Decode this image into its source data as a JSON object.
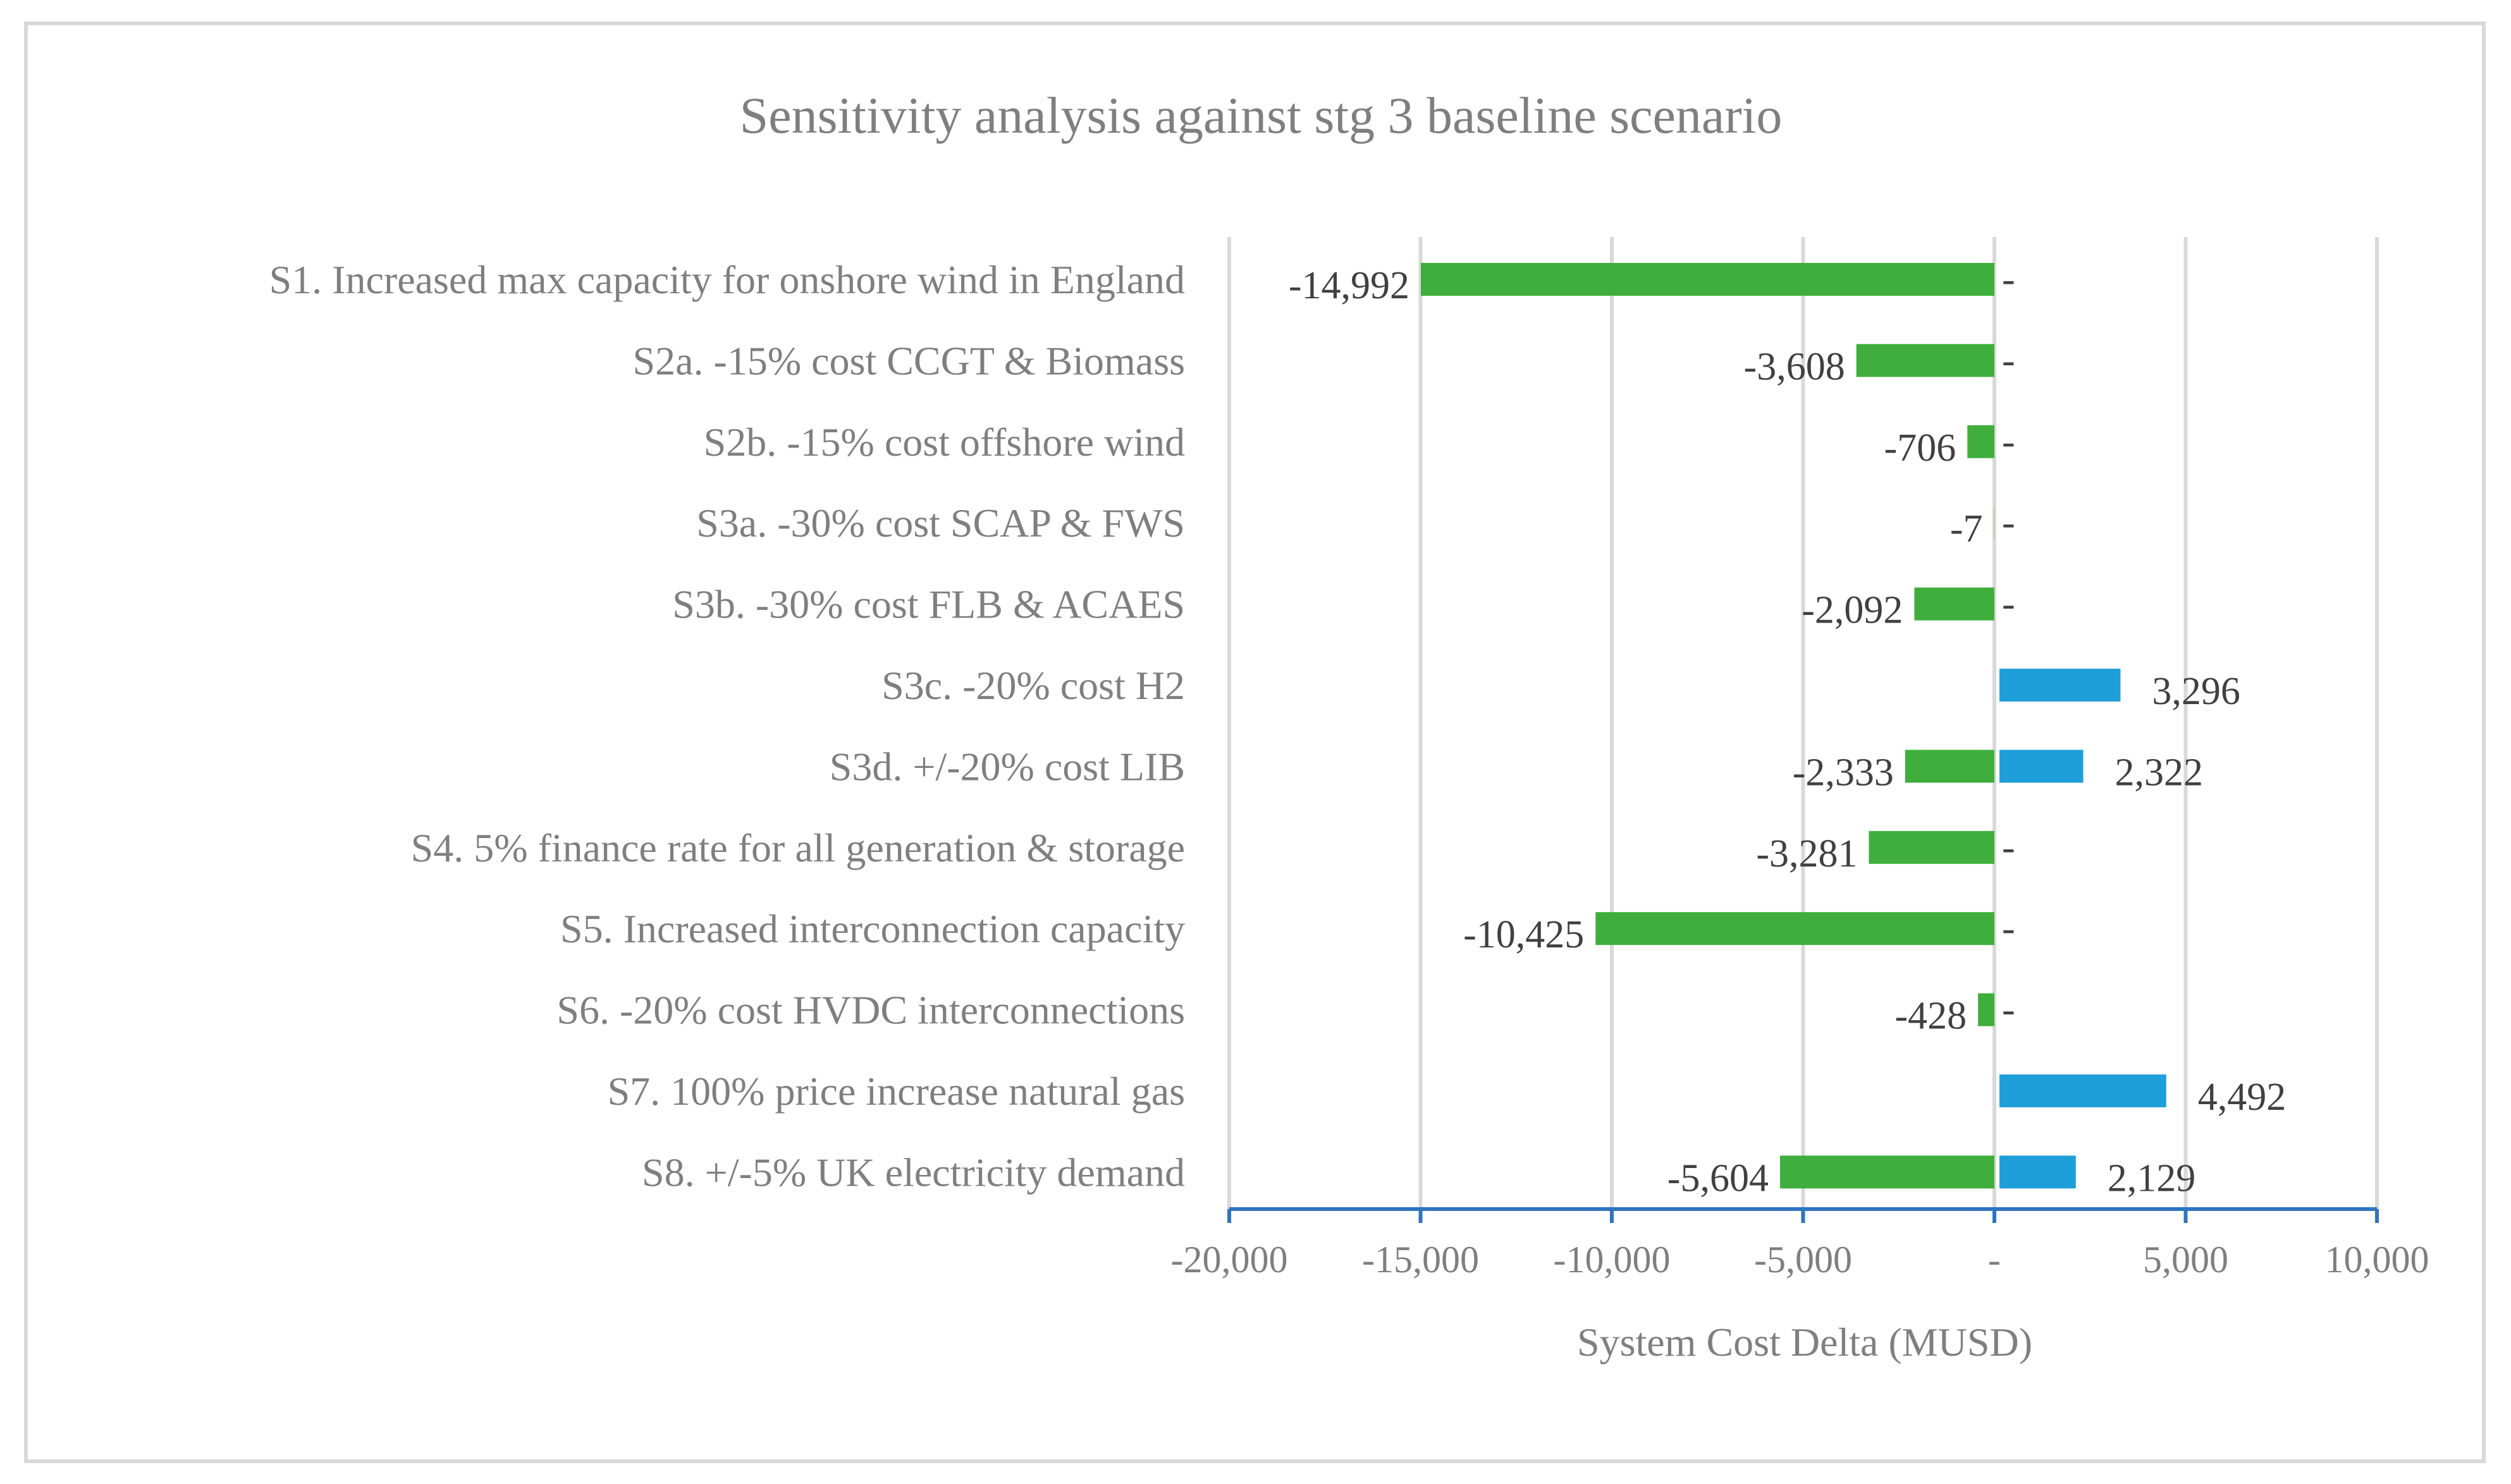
{
  "chart_data": {
    "type": "bar",
    "orientation": "horizontal",
    "title": "Sensitivity analysis against stg 3 baseline scenario",
    "xlabel": "System Cost Delta (MUSD)",
    "ylabel": "",
    "xlim": [
      -20000,
      10000
    ],
    "xticks": [
      -20000,
      -15000,
      -10000,
      -5000,
      0,
      5000,
      10000
    ],
    "xtick_labels": [
      "-20,000",
      "-15,000",
      "-10,000",
      "-5,000",
      "-",
      "5,000",
      "10,000"
    ],
    "grid": true,
    "categories": [
      "S1. Increased max capacity for onshore wind in England",
      "S2a. -15% cost CCGT & Biomass",
      "S2b. -15% cost offshore wind",
      "S3a. -30% cost SCAP & FWS",
      "S3b. -30% cost FLB & ACAES",
      "S3c. -20% cost H2",
      "S3d. +/-20% cost LIB",
      "S4. 5% finance rate for all generation & storage",
      "S5. Increased interconnection capacity",
      "S6. -20% cost HVDC interconnections",
      "S7. 100% price increase natural gas",
      "S8. +/-5% UK electricity demand"
    ],
    "series": [
      {
        "name": "Decrease",
        "color": "#3fae3c",
        "values": [
          -14992,
          -3608,
          -706,
          -7,
          -2092,
          0,
          -2333,
          -3281,
          -10425,
          -428,
          0,
          -5604
        ],
        "labels": [
          "-14,992",
          "-3,608",
          "-706",
          "-7",
          "-2,092",
          "",
          "-2,333",
          "-3,281",
          "-10,425",
          "-428",
          "",
          "-5,604"
        ]
      },
      {
        "name": "Increase",
        "color": "#1f9fd9",
        "values": [
          0,
          0,
          0,
          0,
          0,
          3296,
          2322,
          0,
          0,
          0,
          4492,
          2129
        ],
        "labels": [
          "-",
          "-",
          "-",
          "-",
          "-",
          "3,296",
          "2,322",
          "-",
          "-",
          "-",
          "4,492",
          "2,129"
        ]
      }
    ]
  }
}
